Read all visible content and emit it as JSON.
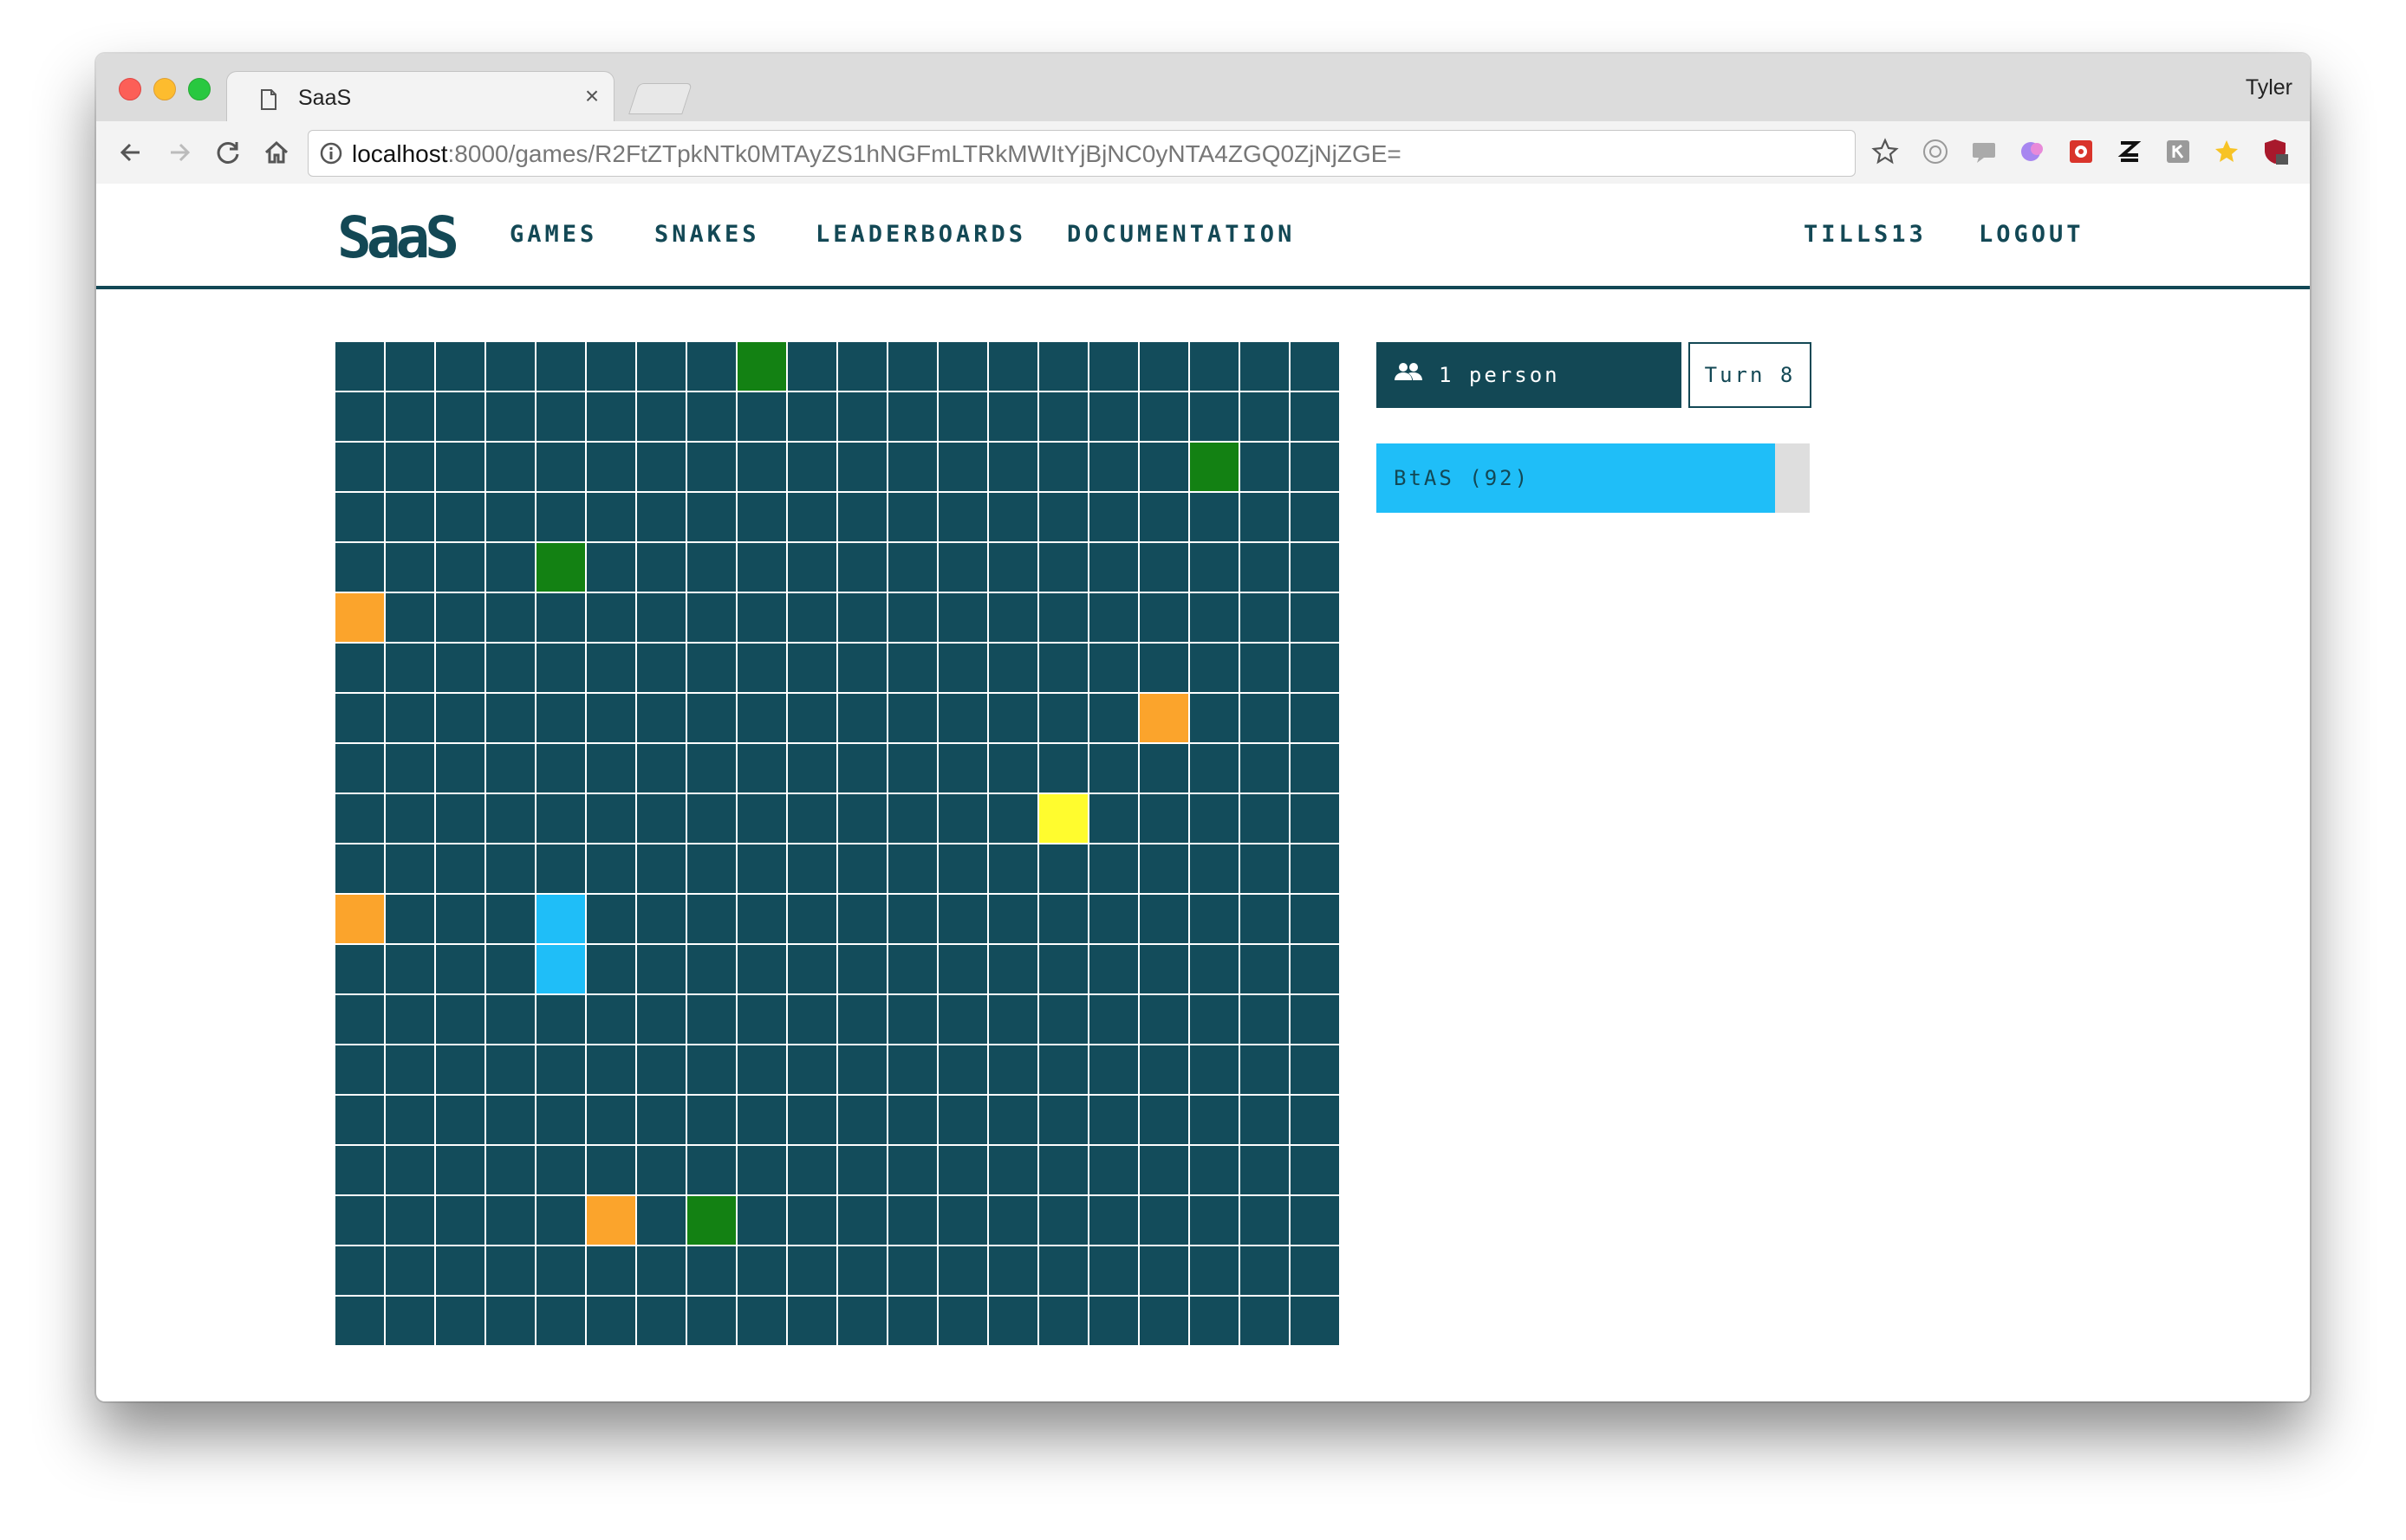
{
  "browser": {
    "tab_title": "SaaS",
    "tab_close": "×",
    "profile_name": "Tyler",
    "url_host": "localhost",
    "url_path": ":8000/games/R2FtZTpkNTk0MTAyZS1hNGFmLTRkMWItYjBjNC0yNTA4ZGQ0ZjNjZGE="
  },
  "nav": {
    "logo": "SaaS",
    "links": [
      "GAMES",
      "SNAKES",
      "LEADERBOARDS",
      "DOCUMENTATION"
    ],
    "user": "TILLS13",
    "logout": "LOGOUT"
  },
  "board": {
    "width": 20,
    "height": 20,
    "colors": {
      "empty": "#134c5b",
      "food": "#138113",
      "snake_head": "#fffc2e",
      "snake_orange": "#fba42c",
      "snake_blue": "#1fbef8"
    },
    "cells": [
      {
        "col": 8,
        "row": 0,
        "type": "food"
      },
      {
        "col": 17,
        "row": 2,
        "type": "food"
      },
      {
        "col": 4,
        "row": 4,
        "type": "food"
      },
      {
        "col": 7,
        "row": 17,
        "type": "food"
      },
      {
        "col": 0,
        "row": 5,
        "type": "snake_orange"
      },
      {
        "col": 16,
        "row": 7,
        "type": "snake_orange"
      },
      {
        "col": 14,
        "row": 9,
        "type": "snake_head"
      },
      {
        "col": 0,
        "row": 11,
        "type": "snake_orange"
      },
      {
        "col": 4,
        "row": 11,
        "type": "snake_blue"
      },
      {
        "col": 4,
        "row": 12,
        "type": "snake_blue"
      },
      {
        "col": 5,
        "row": 17,
        "type": "snake_orange"
      }
    ]
  },
  "sidebar": {
    "viewers_icon": "people-icon",
    "viewers_text": "1 person",
    "turn_text": "Turn 8",
    "snakes": [
      {
        "label": "BtAS (92)",
        "health": 92,
        "color": "#1fbef8"
      }
    ]
  }
}
